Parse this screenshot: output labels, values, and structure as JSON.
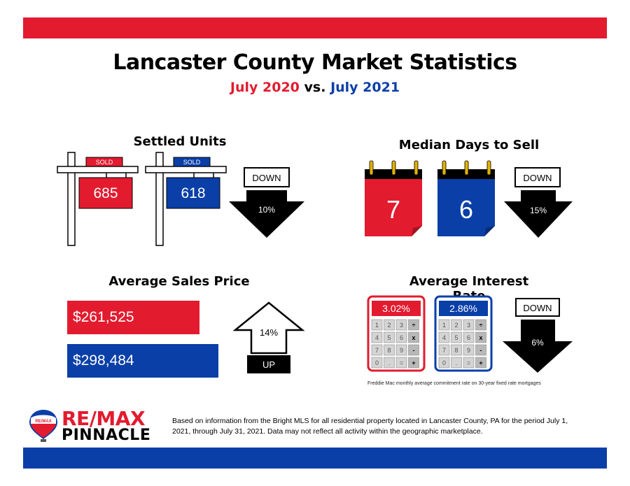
{
  "header": {
    "title": "Lancaster County Market Statistics",
    "subtitle_2020": "July 2020",
    "subtitle_vs": "vs.",
    "subtitle_2021": "July 2021"
  },
  "colors": {
    "red": "#e31b2f",
    "blue": "#0b3fa8",
    "black": "#000000"
  },
  "chart_data": [
    {
      "type": "table",
      "title": "Settled Units",
      "categories": [
        "July 2020",
        "July 2021"
      ],
      "values": [
        685,
        618
      ],
      "value_labels": [
        "685",
        "618"
      ],
      "sign_label": "SOLD",
      "direction": "DOWN",
      "change": "10%"
    },
    {
      "type": "table",
      "title": "Median Days to Sell",
      "categories": [
        "July 2020",
        "July 2021"
      ],
      "values": [
        7,
        6
      ],
      "value_labels": [
        "7",
        "6"
      ],
      "direction": "DOWN",
      "change": "15%"
    },
    {
      "type": "bar",
      "title": "Average Sales Price",
      "categories": [
        "July 2020",
        "July 2021"
      ],
      "values": [
        261525,
        298484
      ],
      "value_labels": [
        "$261,525",
        "$298,484"
      ],
      "direction": "UP",
      "change": "14%"
    },
    {
      "type": "table",
      "title": "Average Interest Rate",
      "categories": [
        "July 2020",
        "July 2021"
      ],
      "values": [
        3.02,
        2.86
      ],
      "value_labels": [
        "3.02%",
        "2.86%"
      ],
      "direction": "DOWN",
      "change": "6%",
      "footnote": "Freddie Mac monthly average commitment rate on 30-year fixed rate mortgages"
    }
  ],
  "calculator_keys": [
    "1",
    "2",
    "3",
    "÷",
    "4",
    "5",
    "6",
    "x",
    "7",
    "8",
    "9",
    "-",
    "0",
    ".",
    "=",
    "+"
  ],
  "footer": {
    "logo_line1": "RE/MAX",
    "logo_line2": "PINNACLE",
    "balloon_text": "RE/MAX",
    "disclaimer": "Based on information from the Bright MLS for all residential property located in Lancaster County, PA for the period July 1, 2021, through July 31, 2021.  Data may not reflect all activity within the geographic marketplace."
  }
}
